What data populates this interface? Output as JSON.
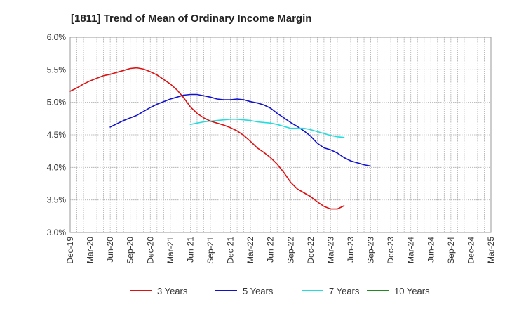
{
  "chart_data": {
    "type": "line",
    "title": "[1811]  Trend of Mean of Ordinary Income Margin",
    "xlabel": "",
    "ylabel": "",
    "ylim": [
      3.0,
      6.0
    ],
    "y_ticks": [
      "3.0%",
      "3.5%",
      "4.0%",
      "4.5%",
      "5.0%",
      "5.5%",
      "6.0%"
    ],
    "x_ticks": [
      "Dec-19",
      "Mar-20",
      "Jun-20",
      "Sep-20",
      "Dec-20",
      "Mar-21",
      "Jun-21",
      "Sep-21",
      "Dec-21",
      "Mar-22",
      "Jun-22",
      "Sep-22",
      "Dec-22",
      "Mar-23",
      "Jun-23",
      "Sep-23",
      "Dec-23",
      "Mar-24",
      "Jun-24",
      "Sep-24",
      "Dec-24",
      "Mar-25"
    ],
    "grid": true,
    "legend_position": "bottom",
    "series": [
      {
        "name": "3 Years",
        "color": "#dd1111",
        "start_index": 0,
        "values": [
          5.17,
          5.22,
          5.28,
          5.33,
          5.37,
          5.41,
          5.43,
          5.46,
          5.49,
          5.52,
          5.53,
          5.51,
          5.47,
          5.42,
          5.35,
          5.28,
          5.19,
          5.07,
          4.93,
          4.83,
          4.76,
          4.71,
          4.68,
          4.65,
          4.61,
          4.56,
          4.49,
          4.4,
          4.3,
          4.23,
          4.15,
          4.05,
          3.92,
          3.77,
          3.67,
          3.61,
          3.55,
          3.47,
          3.4,
          3.36,
          3.36,
          3.41
        ]
      },
      {
        "name": "5 Years",
        "color": "#1111cc",
        "start_index": 6,
        "values": [
          4.62,
          4.67,
          4.72,
          4.76,
          4.8,
          4.86,
          4.92,
          4.97,
          5.01,
          5.05,
          5.08,
          5.11,
          5.12,
          5.12,
          5.1,
          5.08,
          5.05,
          5.04,
          5.04,
          5.05,
          5.04,
          5.01,
          4.99,
          4.96,
          4.91,
          4.83,
          4.76,
          4.69,
          4.63,
          4.56,
          4.48,
          4.37,
          4.3,
          4.27,
          4.22,
          4.15,
          4.1,
          4.07,
          4.04,
          4.02
        ]
      },
      {
        "name": "7 Years",
        "color": "#22dddd",
        "start_index": 18,
        "values": [
          4.66,
          4.68,
          4.7,
          4.71,
          4.72,
          4.73,
          4.74,
          4.74,
          4.73,
          4.72,
          4.7,
          4.69,
          4.68,
          4.66,
          4.63,
          4.6,
          4.6,
          4.6,
          4.58,
          4.55,
          4.52,
          4.49,
          4.47,
          4.46
        ]
      },
      {
        "name": "10 Years",
        "color": "#228822",
        "start_index": 0,
        "values": []
      }
    ]
  }
}
